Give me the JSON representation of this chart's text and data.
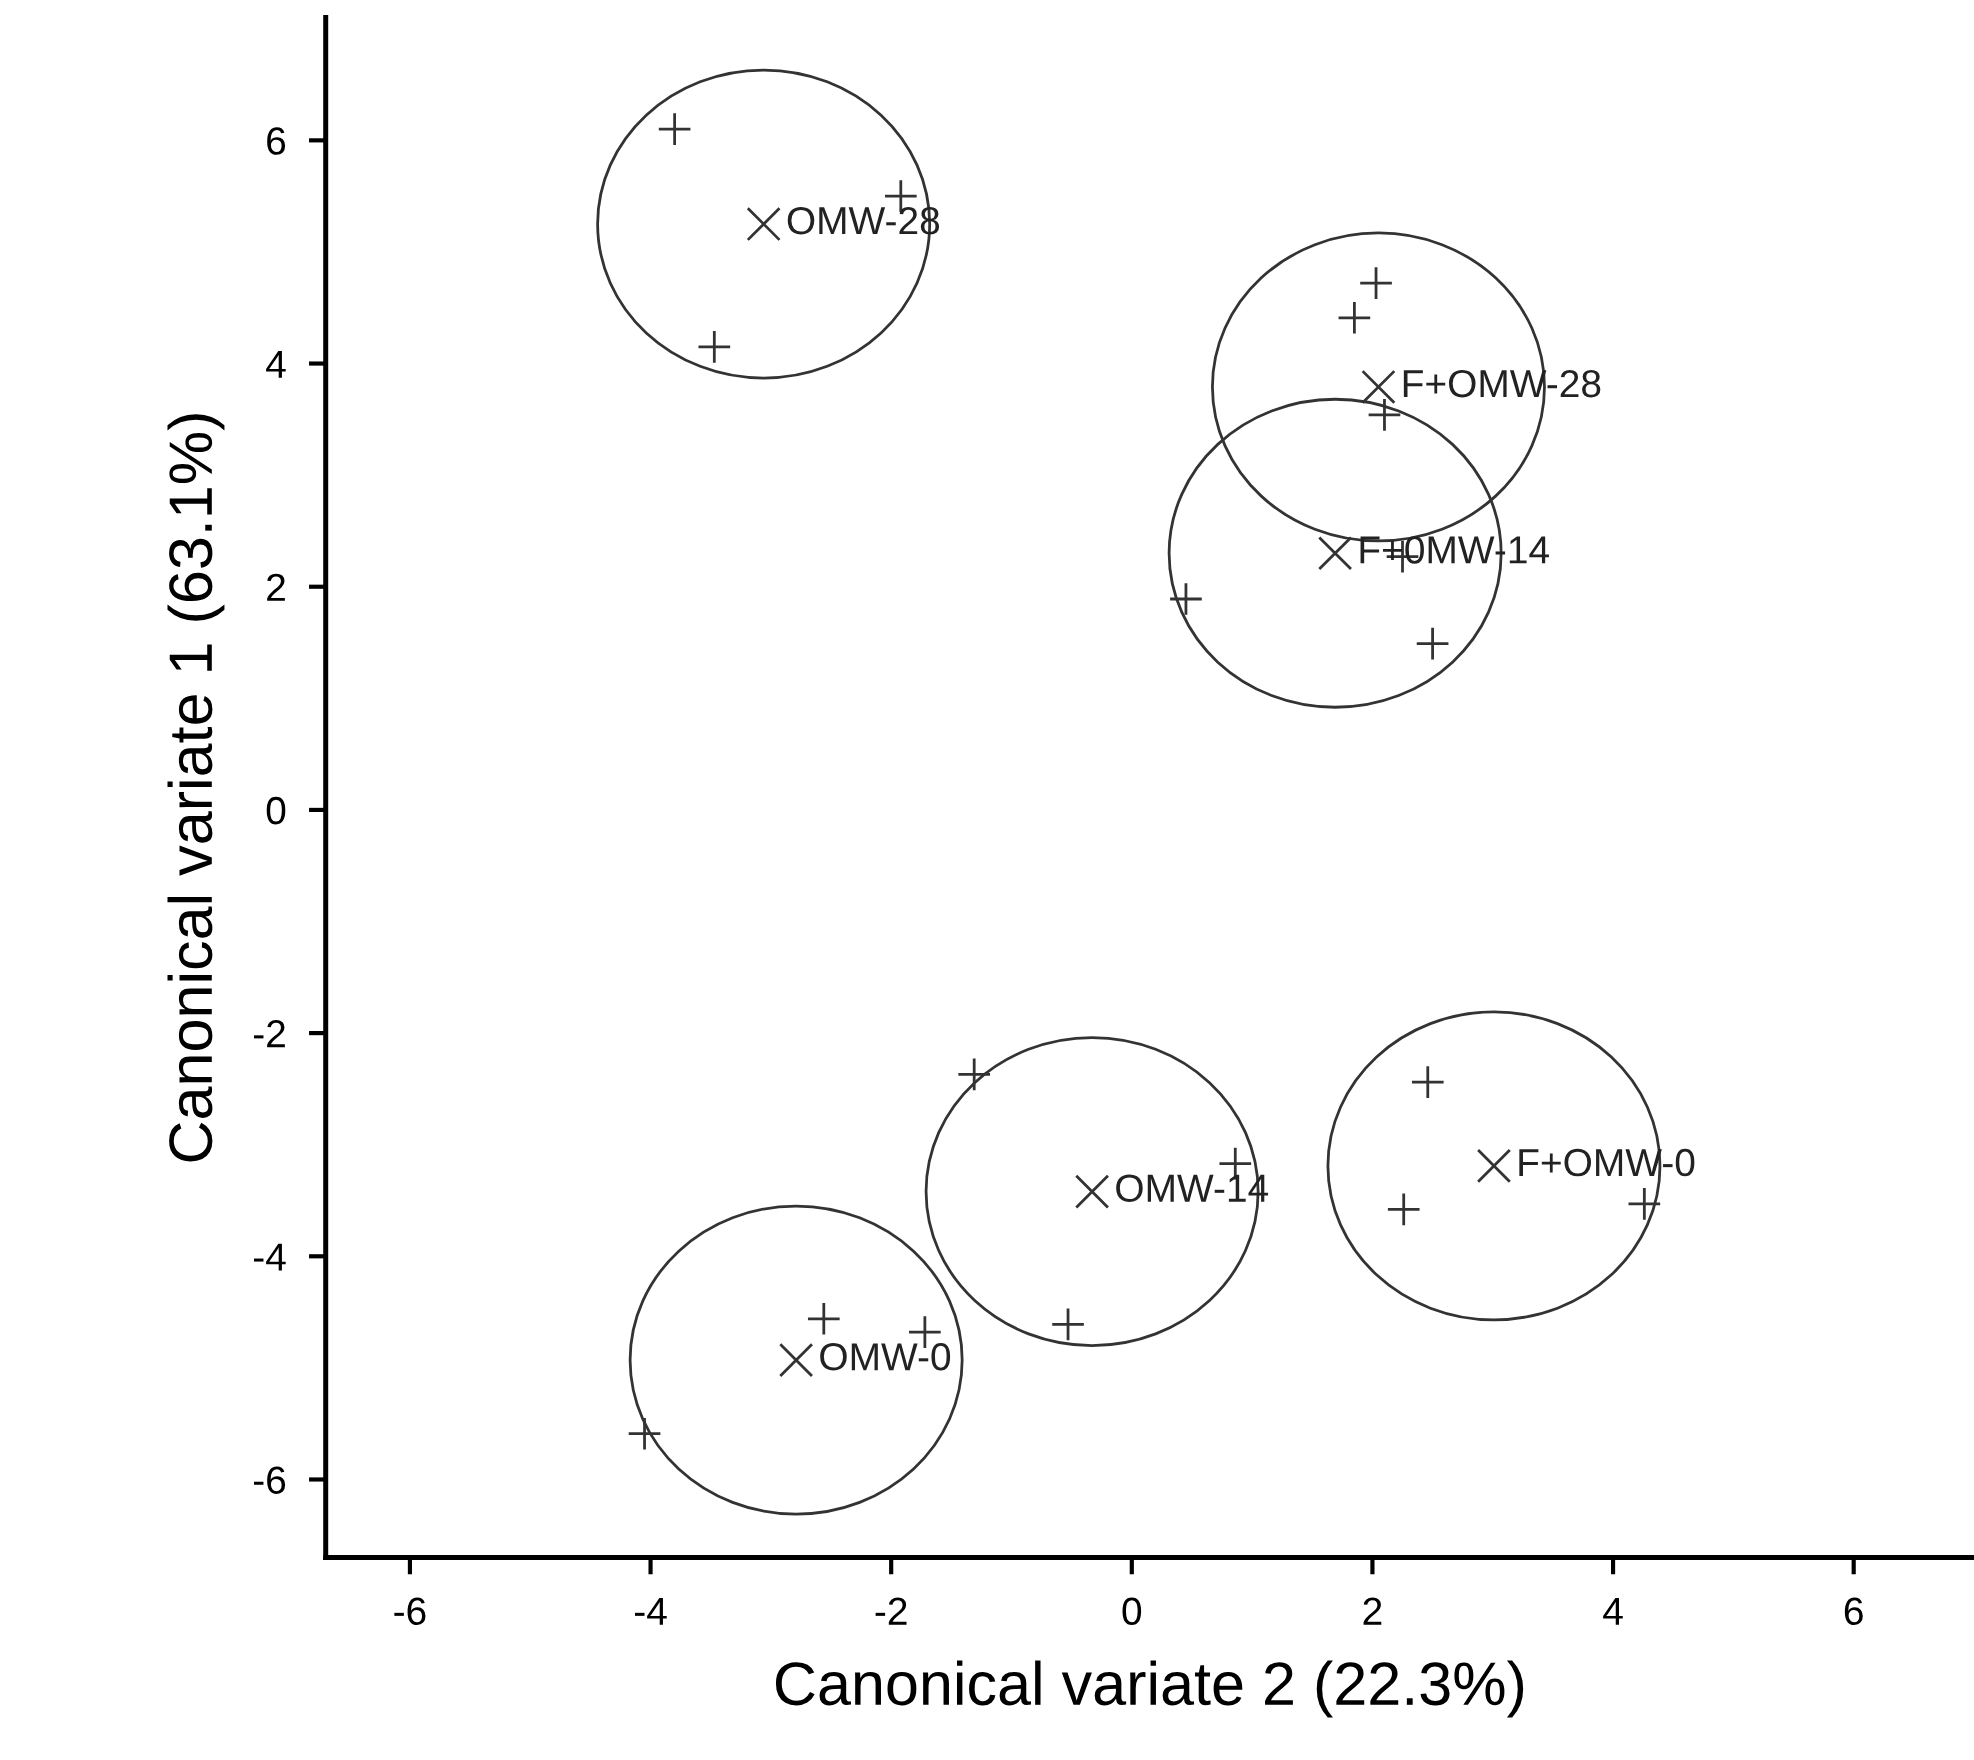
{
  "chart_data": {
    "type": "scatter",
    "xlabel": "Canonical variate 2 (22.3%)",
    "ylabel": "Canonical variate 1 (63.1%)",
    "xlim": [
      -6.7,
      7
    ],
    "ylim": [
      -6.7,
      7.1
    ],
    "xticks": [
      -6,
      -4,
      -2,
      0,
      2,
      4,
      6
    ],
    "yticks": [
      -6,
      -4,
      -2,
      0,
      2,
      4,
      6
    ],
    "grid": false,
    "legend": false,
    "series": [
      {
        "color": "#333333",
        "marker": "cross",
        "x": [
          -3.8,
          -1.92,
          -3.47,
          2.03,
          1.85,
          2.1,
          0.45,
          2.5,
          2.25,
          -1.31,
          0.86,
          -0.53,
          -2.56,
          -1.72,
          -4.05,
          2.46,
          2.26,
          4.26
        ],
        "values": [
          6.1,
          5.5,
          4.15,
          4.72,
          4.41,
          3.54,
          1.89,
          1.49,
          2.27,
          -2.37,
          -3.17,
          -4.61,
          -4.56,
          -4.68,
          -5.59,
          -2.44,
          -3.58,
          -3.53
        ]
      },
      {
        "color": "#333333",
        "x": [
          -3.06,
          2.05,
          1.69,
          -0.33,
          -2.79,
          3.01
        ],
        "values": [
          5.25,
          3.79,
          2.3,
          -3.42,
          -4.93,
          -3.19
        ]
      }
    ],
    "annotations": [
      {
        "text": "OMW-28",
        "x": -3.06,
        "y": 5.25
      },
      {
        "text": "F+OMW-28",
        "x": 2.05,
        "y": 3.79
      },
      {
        "text": "F+0MW-14",
        "x": 1.69,
        "y": 2.3
      },
      {
        "text": "OMW-14",
        "x": -0.33,
        "y": -3.42
      },
      {
        "text": "OMW-0",
        "x": -2.79,
        "y": -4.93
      },
      {
        "text": "F+OMW-0",
        "x": 3.01,
        "y": -3.19
      }
    ]
  }
}
